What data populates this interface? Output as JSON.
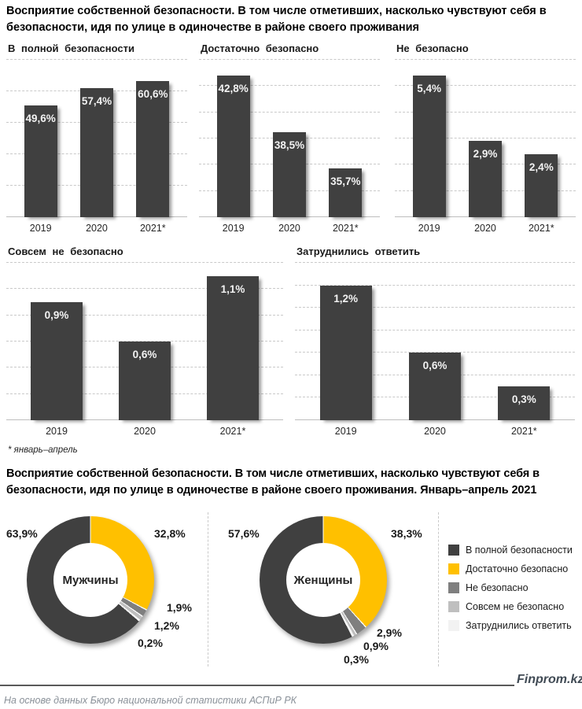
{
  "page": {
    "title1": "Восприятие собственной безопасности. В том числе отметивших, насколько чувствуют себя в безопасности, идя по улице в одиночестве в районе своего проживания",
    "title2": "Восприятие собственной безопасности. В том числе отметивших, насколько чувствуют себя в безопасности, идя по улице в одиночестве в районе своего проживания. Январь–апрель 2021",
    "footnote": "* январь–апрель",
    "source": "На основе данных Бюро национальной статистики АСПиР РК",
    "brand": "Finprom.kz"
  },
  "colors": {
    "full_safety": "#404040",
    "fairly_safe": "#FFC000",
    "unsafe": "#7F7F7F",
    "very_unsafe": "#BFBFBF",
    "undecided": "#F2F2F2",
    "gridline": "#C9C9C9",
    "value_label": "#F2F2F2"
  },
  "legend": {
    "items": [
      {
        "label": "В полной безопасности",
        "color": "#404040"
      },
      {
        "label": "Достаточно безопасно",
        "color": "#FFC000"
      },
      {
        "label": "Не безопасно",
        "color": "#7F7F7F"
      },
      {
        "label": "Совсем не безопасно",
        "color": "#BFBFBF"
      },
      {
        "label": "Затруднились ответить",
        "color": "#F2F2F2"
      }
    ]
  },
  "chart_data": [
    {
      "type": "bar",
      "title": "В полной безопасности",
      "categories": [
        "2019",
        "2020",
        "2021*"
      ],
      "values": [
        49.6,
        57.4,
        60.6
      ],
      "value_labels": [
        "49,6%",
        "57,4%",
        "60,6%"
      ],
      "ylim": [
        0,
        70
      ],
      "grid_intervals": 5,
      "grid": true,
      "bar_color": "#404040",
      "unit": "%"
    },
    {
      "type": "bar",
      "title": "Достаточно  безопасно",
      "categories": [
        "2019",
        "2020",
        "2021*"
      ],
      "values": [
        42.8,
        38.5,
        35.7
      ],
      "value_labels": [
        "42,8%",
        "38,5%",
        "35,7%"
      ],
      "ylim": [
        32,
        44
      ],
      "grid_intervals": 6,
      "grid": true,
      "bar_color": "#404040",
      "unit": "%"
    },
    {
      "type": "bar",
      "title": "Не безопасно",
      "categories": [
        "2019",
        "2020",
        "2021*"
      ],
      "values": [
        5.4,
        2.9,
        2.4
      ],
      "value_labels": [
        "5,4%",
        "2,9%",
        "2,4%"
      ],
      "ylim": [
        0,
        6
      ],
      "grid_intervals": 6,
      "grid": true,
      "bar_color": "#404040",
      "unit": "%"
    },
    {
      "type": "bar",
      "title": "Совсем  не безопасно",
      "categories": [
        "2019",
        "2020",
        "2021*"
      ],
      "values": [
        0.9,
        0.6,
        1.1
      ],
      "value_labels": [
        "0,9%",
        "0,6%",
        "1,1%"
      ],
      "ylim": [
        0,
        1.2
      ],
      "grid_intervals": 6,
      "grid": true,
      "bar_color": "#404040",
      "unit": "%"
    },
    {
      "type": "bar",
      "title": "Затруднились  ответить",
      "categories": [
        "2019",
        "2020",
        "2021*"
      ],
      "values": [
        1.2,
        0.6,
        0.3
      ],
      "value_labels": [
        "1,2%",
        "0,6%",
        "0,3%"
      ],
      "ylim": [
        0,
        1.4
      ],
      "grid_intervals": 7,
      "grid": true,
      "bar_color": "#404040",
      "unit": "%"
    },
    {
      "type": "donut",
      "group_label": "Мужчины",
      "slices": [
        {
          "name": "В полной безопасности",
          "value": 63.9,
          "label": "63,9%",
          "color": "#404040"
        },
        {
          "name": "Достаточно безопасно",
          "value": 32.8,
          "label": "32,8%",
          "color": "#FFC000"
        },
        {
          "name": "Не безопасно",
          "value": 1.9,
          "label": "1,9%",
          "color": "#7F7F7F"
        },
        {
          "name": "Совсем не безопасно",
          "value": 1.2,
          "label": "1,2%",
          "color": "#BFBFBF"
        },
        {
          "name": "Затруднились ответить",
          "value": 0.2,
          "label": "0,2%",
          "color": "#F2F2F2"
        }
      ],
      "draw_order": [
        1,
        2,
        3,
        4,
        0
      ],
      "legend_position": "right"
    },
    {
      "type": "donut",
      "group_label": "Женщины",
      "slices": [
        {
          "name": "В полной безопасности",
          "value": 57.6,
          "label": "57,6%",
          "color": "#404040"
        },
        {
          "name": "Достаточно безопасно",
          "value": 38.3,
          "label": "38,3%",
          "color": "#FFC000"
        },
        {
          "name": "Не безопасно",
          "value": 2.9,
          "label": "2,9%",
          "color": "#7F7F7F"
        },
        {
          "name": "Совсем не безопасно",
          "value": 0.9,
          "label": "0,9%",
          "color": "#BFBFBF"
        },
        {
          "name": "Затруднились ответить",
          "value": 0.3,
          "label": "0,3%",
          "color": "#F2F2F2"
        }
      ],
      "draw_order": [
        1,
        2,
        3,
        4,
        0
      ],
      "legend_position": "right"
    }
  ]
}
